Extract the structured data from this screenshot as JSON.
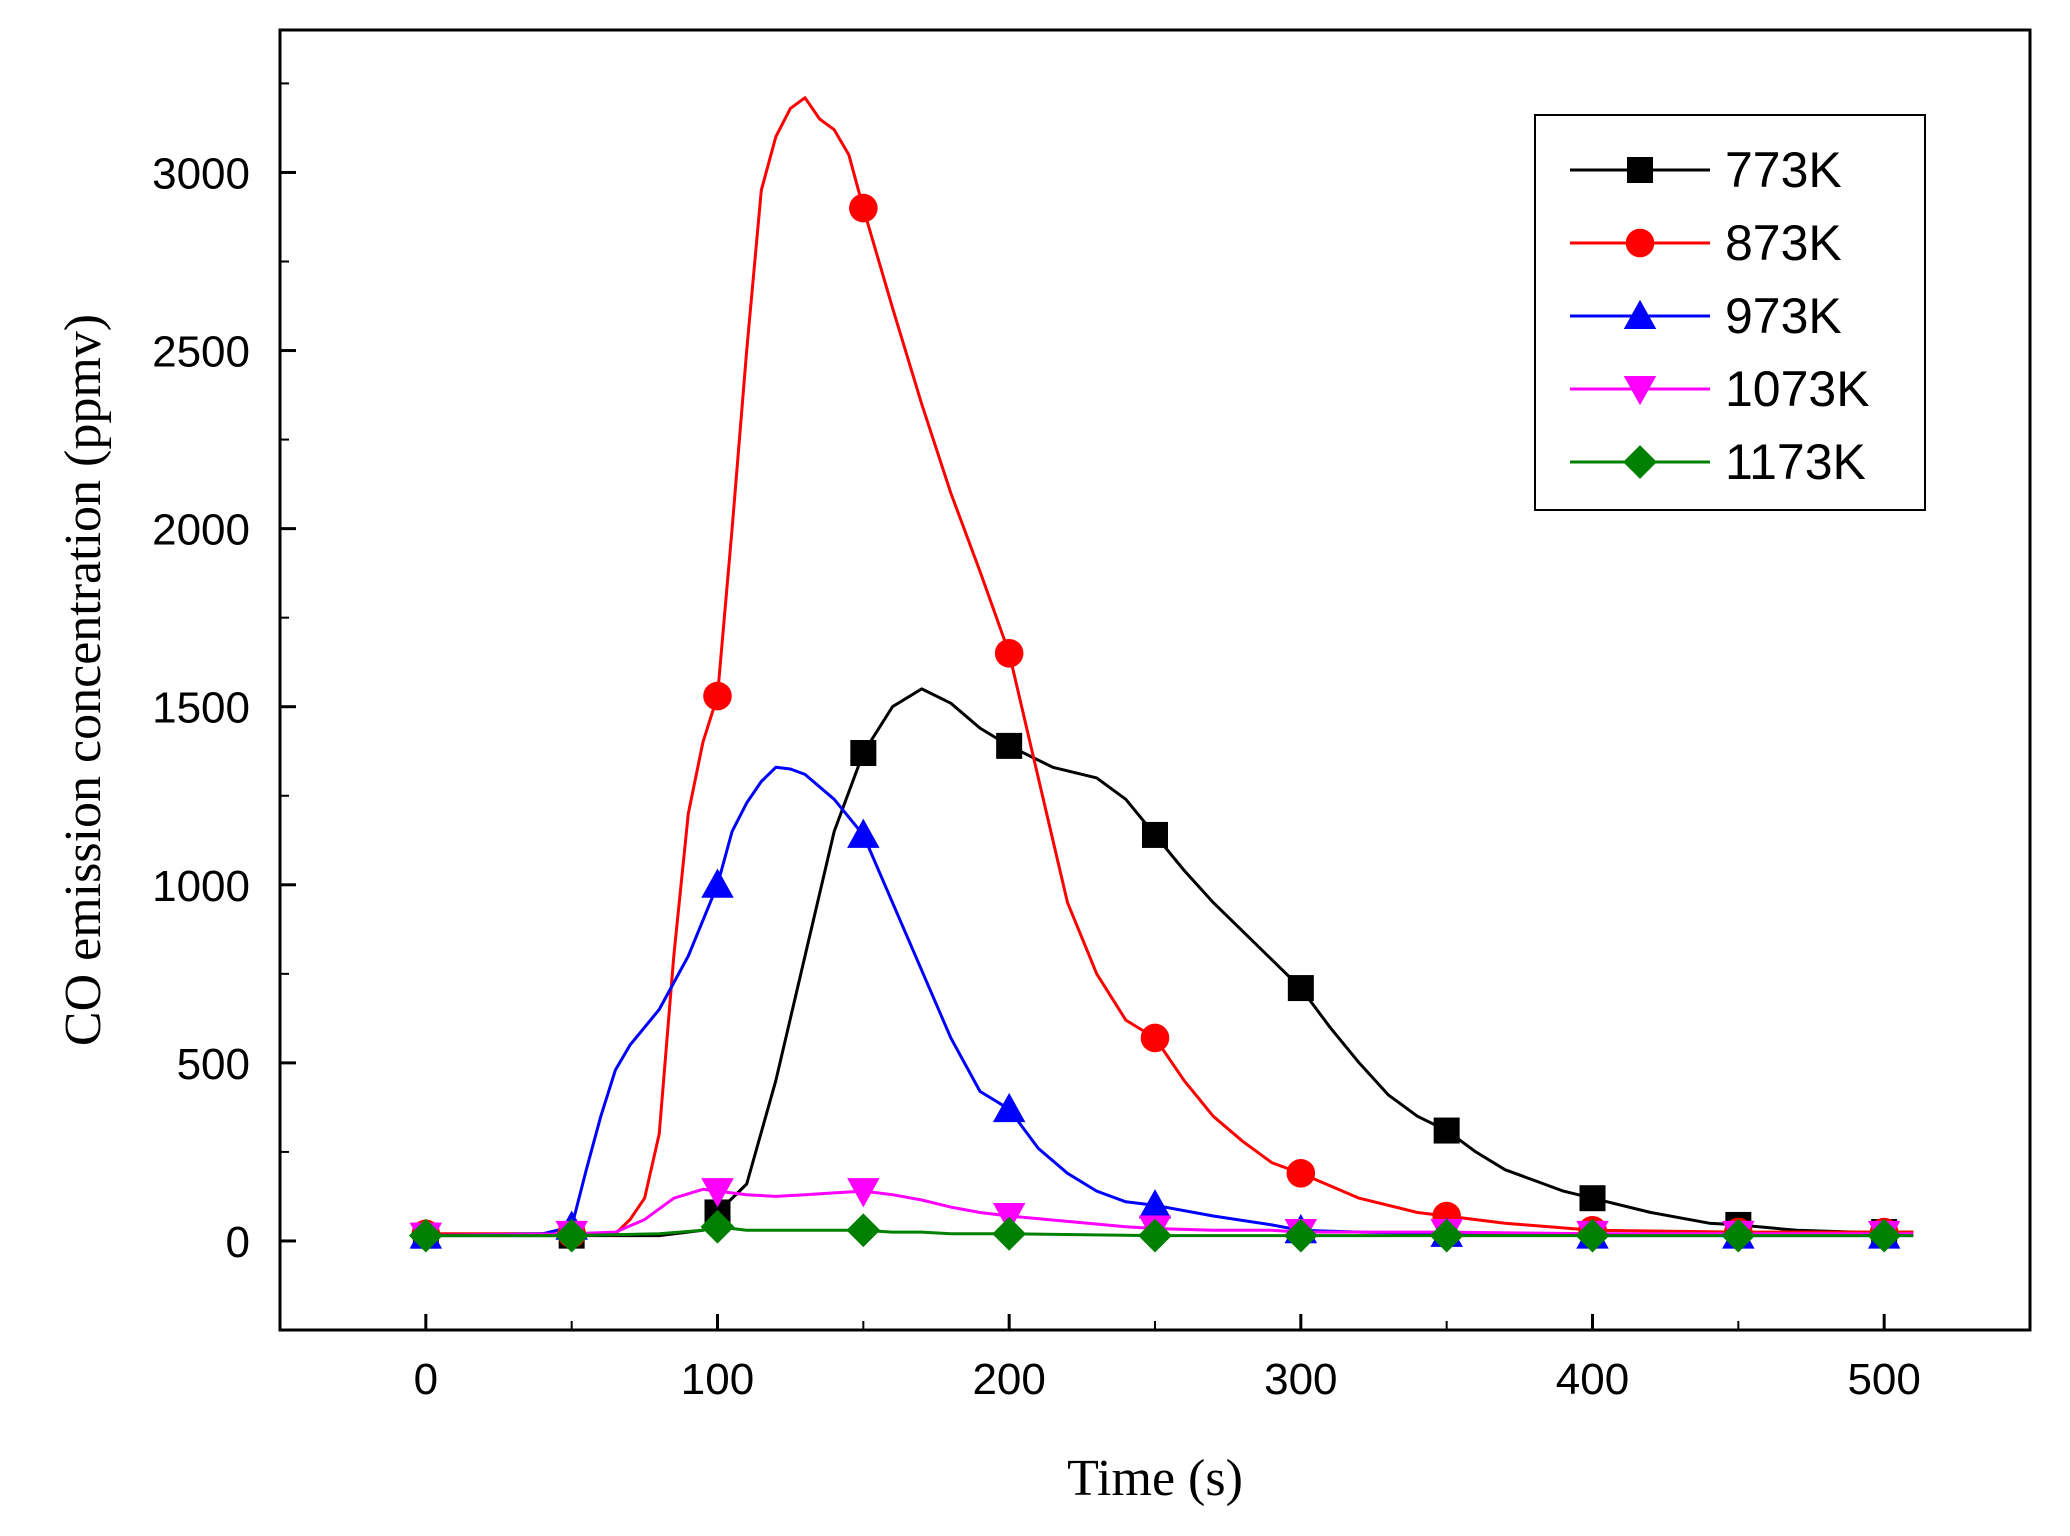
{
  "chart_data": {
    "type": "line",
    "title": "",
    "xlabel": "Time (s)",
    "ylabel": "CO emission concentration (ppmv)",
    "xlim": [
      -50,
      550
    ],
    "ylim": [
      -250,
      3400
    ],
    "xticks": [
      0,
      100,
      200,
      300,
      400,
      500
    ],
    "yticks": [
      0,
      500,
      1000,
      1500,
      2000,
      2500,
      3000
    ],
    "grid": false,
    "legend_position": "top-right",
    "series": [
      {
        "name": "773K",
        "color": "#000000",
        "marker": "square",
        "x": [
          0,
          50,
          80,
          95,
          100,
          110,
          120,
          130,
          140,
          150,
          160,
          170,
          180,
          190,
          200,
          215,
          230,
          240,
          250,
          260,
          270,
          280,
          290,
          300,
          310,
          320,
          330,
          340,
          350,
          360,
          370,
          380,
          390,
          400,
          420,
          440,
          450,
          470,
          490,
          500,
          510
        ],
        "y": [
          15,
          15,
          15,
          30,
          80,
          160,
          450,
          800,
          1150,
          1370,
          1500,
          1550,
          1510,
          1440,
          1390,
          1330,
          1300,
          1240,
          1140,
          1040,
          950,
          870,
          790,
          710,
          600,
          500,
          410,
          350,
          310,
          250,
          200,
          170,
          140,
          120,
          80,
          50,
          45,
          30,
          25,
          25,
          25
        ],
        "marker_x": [
          0,
          50,
          100,
          150,
          200,
          250,
          300,
          350,
          400,
          450,
          500
        ],
        "marker_y": [
          15,
          15,
          80,
          1370,
          1390,
          1140,
          710,
          310,
          120,
          45,
          25
        ]
      },
      {
        "name": "873K",
        "color": "#ff0000",
        "marker": "circle",
        "x": [
          0,
          50,
          65,
          70,
          75,
          80,
          85,
          90,
          95,
          100,
          105,
          110,
          115,
          120,
          125,
          130,
          135,
          140,
          145,
          150,
          160,
          170,
          180,
          190,
          200,
          210,
          220,
          230,
          240,
          250,
          260,
          270,
          280,
          290,
          300,
          320,
          340,
          350,
          370,
          400,
          450,
          500,
          510
        ],
        "y": [
          20,
          20,
          20,
          60,
          120,
          300,
          800,
          1200,
          1400,
          1530,
          2000,
          2500,
          2950,
          3100,
          3180,
          3210,
          3150,
          3120,
          3050,
          2900,
          2620,
          2350,
          2100,
          1880,
          1650,
          1300,
          950,
          750,
          620,
          570,
          450,
          350,
          280,
          220,
          190,
          120,
          80,
          70,
          50,
          30,
          25,
          25,
          25
        ],
        "marker_x": [
          0,
          50,
          100,
          150,
          200,
          250,
          300,
          350,
          400,
          450,
          500
        ],
        "marker_y": [
          20,
          20,
          1530,
          2900,
          1650,
          570,
          190,
          70,
          30,
          25,
          25
        ]
      },
      {
        "name": "973K",
        "color": "#0000ff",
        "marker": "triangle-up",
        "x": [
          0,
          40,
          50,
          55,
          60,
          65,
          70,
          80,
          90,
          100,
          105,
          110,
          115,
          120,
          125,
          130,
          140,
          150,
          160,
          170,
          180,
          190,
          200,
          210,
          220,
          230,
          240,
          250,
          270,
          290,
          300,
          320,
          350,
          400,
          450,
          500,
          510
        ],
        "y": [
          15,
          20,
          40,
          200,
          350,
          480,
          550,
          650,
          800,
          1000,
          1150,
          1230,
          1290,
          1330,
          1325,
          1310,
          1240,
          1140,
          950,
          760,
          570,
          420,
          370,
          260,
          190,
          140,
          110,
          100,
          70,
          45,
          30,
          25,
          20,
          15,
          15,
          15,
          15
        ],
        "marker_x": [
          0,
          50,
          100,
          150,
          200,
          250,
          300,
          350,
          400,
          450,
          500
        ],
        "marker_y": [
          15,
          40,
          1000,
          1140,
          370,
          100,
          30,
          20,
          15,
          15,
          15
        ]
      },
      {
        "name": "1073K",
        "color": "#ff00ff",
        "marker": "triangle-down",
        "x": [
          0,
          50,
          65,
          75,
          85,
          95,
          100,
          110,
          120,
          130,
          140,
          150,
          160,
          170,
          180,
          190,
          200,
          220,
          240,
          250,
          270,
          290,
          300,
          350,
          400,
          450,
          500,
          510
        ],
        "y": [
          15,
          20,
          25,
          60,
          120,
          145,
          140,
          130,
          125,
          130,
          135,
          140,
          130,
          115,
          95,
          80,
          70,
          55,
          40,
          35,
          30,
          30,
          25,
          25,
          20,
          20,
          20,
          20
        ],
        "marker_x": [
          0,
          50,
          100,
          150,
          200,
          250,
          300,
          350,
          400,
          450,
          500
        ],
        "marker_y": [
          15,
          20,
          140,
          140,
          70,
          35,
          25,
          25,
          20,
          20,
          20
        ]
      },
      {
        "name": "1173K",
        "color": "#008000",
        "marker": "diamond",
        "x": [
          0,
          50,
          80,
          95,
          100,
          110,
          120,
          130,
          140,
          150,
          160,
          170,
          180,
          200,
          250,
          300,
          350,
          400,
          450,
          500,
          510
        ],
        "y": [
          15,
          15,
          20,
          30,
          40,
          30,
          30,
          30,
          30,
          30,
          25,
          25,
          20,
          20,
          15,
          15,
          15,
          15,
          15,
          15,
          15
        ],
        "marker_x": [
          0,
          50,
          100,
          150,
          200,
          250,
          300,
          350,
          400,
          450,
          500
        ],
        "marker_y": [
          15,
          15,
          40,
          30,
          20,
          15,
          15,
          15,
          15,
          15,
          15
        ]
      }
    ]
  }
}
